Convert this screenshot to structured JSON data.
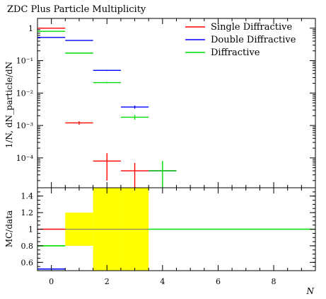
{
  "chart_data": [
    {
      "type": "line",
      "title": "ZDC Plus Particle Multiplicity",
      "ylabel": "1/N, dN_particle/dN",
      "xlabel": "N",
      "yscale": "log",
      "xlim": [
        -0.5,
        9.5
      ],
      "ylim": [
        1.2e-05,
        2
      ],
      "y_ticks": [
        {
          "value": 1,
          "label": "1"
        },
        {
          "value": 0.1,
          "label": "10⁻¹"
        },
        {
          "value": 0.01,
          "label": "10⁻²"
        },
        {
          "value": 0.001,
          "label": "10⁻³"
        },
        {
          "value": 0.0001,
          "label": "10⁻⁴"
        }
      ],
      "legend_position": "top-right",
      "series": [
        {
          "name": "Single Diffractive",
          "color": "#ff0000",
          "points": [
            {
              "x0": -0.5,
              "x1": 0.5,
              "y": 1.0
            },
            {
              "x0": 0.5,
              "x1": 1.5,
              "y": 0.0012,
              "err": 0.00015
            },
            {
              "x0": 1.5,
              "x1": 2.5,
              "y": 8e-05,
              "err": 6e-05
            },
            {
              "x0": 2.5,
              "x1": 3.5,
              "y": 4e-05,
              "err": 3e-05
            },
            {
              "x0": 3.5,
              "x1": 4.5,
              "y": 4e-05
            }
          ]
        },
        {
          "name": "Double Diffractive",
          "color": "#0000ff",
          "points": [
            {
              "x0": -0.5,
              "x1": 0.5,
              "y": 0.52
            },
            {
              "x0": 0.5,
              "x1": 1.5,
              "y": 0.42
            },
            {
              "x0": 1.5,
              "x1": 2.5,
              "y": 0.05,
              "err": 0.002
            },
            {
              "x0": 2.5,
              "x1": 3.5,
              "y": 0.0037,
              "err": 0.0004
            },
            {
              "x0": 3.5,
              "x1": 4.5,
              "y": 4e-05
            }
          ]
        },
        {
          "name": "Diffractive",
          "color": "#00dd00",
          "points": [
            {
              "x0": -0.5,
              "x1": 0.5,
              "y": 0.8
            },
            {
              "x0": 0.5,
              "x1": 1.5,
              "y": 0.17
            },
            {
              "x0": 1.5,
              "x1": 2.5,
              "y": 0.021,
              "err": 0.001
            },
            {
              "x0": 2.5,
              "x1": 3.5,
              "y": 0.0018,
              "err": 0.0003
            },
            {
              "x0": 3.5,
              "x1": 4.5,
              "y": 4e-05,
              "err": 4e-05
            }
          ]
        }
      ]
    },
    {
      "type": "line",
      "ylabel": "MC/data",
      "xlabel": "N",
      "xlim": [
        -0.5,
        9.5
      ],
      "ylim": [
        0.5,
        1.5
      ],
      "y_ticks": [
        0.6,
        0.8,
        1,
        1.2,
        1.4
      ],
      "x_ticks": [
        0,
        2,
        4,
        6,
        8
      ],
      "uncertainty_band": {
        "color": "#ffff00",
        "bins": [
          {
            "x0": -0.5,
            "x1": 0.5,
            "lo": 1.0,
            "hi": 1.0
          },
          {
            "x0": 0.5,
            "x1": 1.5,
            "lo": 0.8,
            "hi": 1.2
          },
          {
            "x0": 1.5,
            "x1": 2.5,
            "lo": 0.5,
            "hi": 1.5
          },
          {
            "x0": 2.5,
            "x1": 3.5,
            "lo": 0.5,
            "hi": 1.5
          }
        ]
      },
      "series": [
        {
          "name": "Single Diffractive",
          "color": "#ff0000",
          "points": [
            {
              "x0": -0.5,
              "x1": 0.5,
              "y": 1.0
            }
          ]
        },
        {
          "name": "Double Diffractive",
          "color": "#0000ff",
          "points": [
            {
              "x0": -0.5,
              "x1": 0.5,
              "y": 0.52
            }
          ]
        },
        {
          "name": "Diffractive",
          "color": "#00dd00",
          "points": [
            {
              "x0": -0.5,
              "x1": 0.5,
              "y": 0.8
            },
            {
              "x0": 3.5,
              "x1": 9.5,
              "y": 1.0
            }
          ]
        }
      ],
      "reference_line": {
        "y": 1.0,
        "color": "#777777"
      }
    }
  ]
}
